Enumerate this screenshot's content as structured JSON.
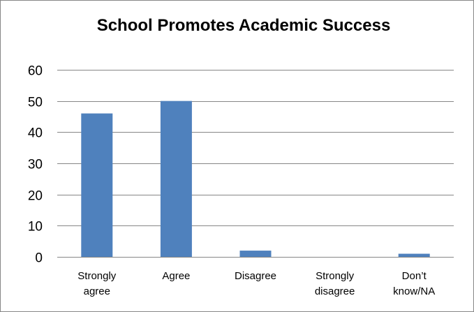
{
  "chart_data": {
    "type": "bar",
    "title": "School Promotes Academic Success",
    "xlabel": "",
    "ylabel": "",
    "categories": [
      [
        "Strongly",
        "agree"
      ],
      [
        "Agree"
      ],
      [
        "Disagree"
      ],
      [
        "Strongly",
        "disagree"
      ],
      [
        "Don’t",
        "know/NA"
      ]
    ],
    "values": [
      46,
      50,
      2,
      0,
      1
    ],
    "ylim": [
      0,
      60
    ],
    "yticks": [
      0,
      10,
      20,
      30,
      40,
      50,
      60
    ],
    "grid": true,
    "legend": "none",
    "bar_color": "#4f81bd",
    "grid_color": "#868686"
  }
}
